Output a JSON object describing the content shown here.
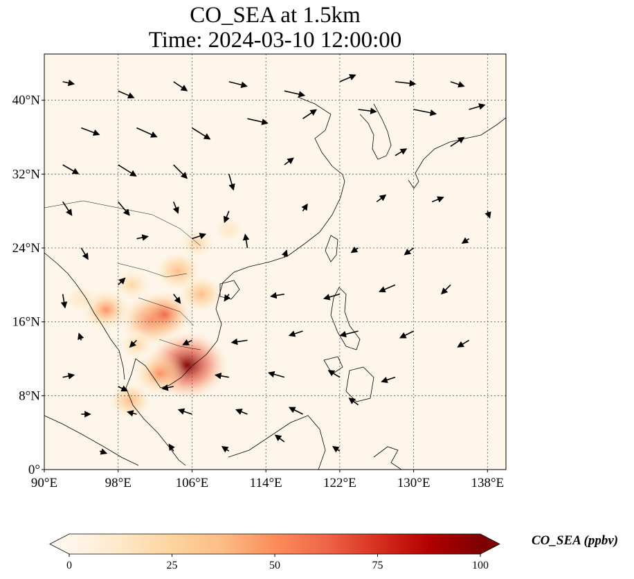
{
  "title": {
    "line1": "CO_SEA at 1.5km",
    "line2": "Time: 2024-03-10 12:00:00"
  },
  "map": {
    "lon_range": [
      90,
      140
    ],
    "lat_range": [
      0,
      45
    ],
    "lon_ticks": [
      {
        "value": 90,
        "label": "90°E"
      },
      {
        "value": 98,
        "label": "98°E"
      },
      {
        "value": 106,
        "label": "106°E"
      },
      {
        "value": 114,
        "label": "114°E"
      },
      {
        "value": 122,
        "label": "122°E"
      },
      {
        "value": 130,
        "label": "130°E"
      },
      {
        "value": 138,
        "label": "138°E"
      }
    ],
    "lat_ticks": [
      {
        "value": 0,
        "label": "0°"
      },
      {
        "value": 8,
        "label": "8°N"
      },
      {
        "value": 16,
        "label": "16°N"
      },
      {
        "value": 24,
        "label": "24°N"
      },
      {
        "value": 32,
        "label": "32°N"
      },
      {
        "value": 40,
        "label": "40°N"
      }
    ],
    "gridlines": true,
    "background_color": "#fef6ea",
    "coastline_color": "#000000",
    "hotspots": [
      {
        "lon": 105.5,
        "lat": 11.3,
        "value": 100
      },
      {
        "lon": 101.6,
        "lat": 16.2,
        "value": 68
      },
      {
        "lon": 103.0,
        "lat": 16.8,
        "value": 58
      },
      {
        "lon": 102.5,
        "lat": 10.4,
        "value": 52
      },
      {
        "lon": 96.7,
        "lat": 17.3,
        "value": 45
      },
      {
        "lon": 104.5,
        "lat": 21.5,
        "value": 38
      },
      {
        "lon": 106.5,
        "lat": 24.5,
        "value": 28
      },
      {
        "lon": 107.0,
        "lat": 19.0,
        "value": 34
      },
      {
        "lon": 99.5,
        "lat": 20.0,
        "value": 30
      },
      {
        "lon": 99.3,
        "lat": 7.5,
        "value": 32
      },
      {
        "lon": 94.0,
        "lat": 18.5,
        "value": 18
      },
      {
        "lon": 100.0,
        "lat": 13.5,
        "value": 25
      },
      {
        "lon": 110.0,
        "lat": 26.0,
        "value": 12
      }
    ],
    "wind_vectors": [
      {
        "lon": 92,
        "lat": 42,
        "u": 5,
        "v": -1
      },
      {
        "lon": 98,
        "lat": 41,
        "u": 7,
        "v": -3
      },
      {
        "lon": 104,
        "lat": 42,
        "u": 6,
        "v": -4
      },
      {
        "lon": 110,
        "lat": 42,
        "u": 8,
        "v": -2
      },
      {
        "lon": 116,
        "lat": 41,
        "u": 9,
        "v": -2
      },
      {
        "lon": 122,
        "lat": 42,
        "u": 7,
        "v": 3
      },
      {
        "lon": 128,
        "lat": 42,
        "u": 9,
        "v": -1
      },
      {
        "lon": 134,
        "lat": 42,
        "u": 6,
        "v": -2
      },
      {
        "lon": 94,
        "lat": 37,
        "u": 8,
        "v": -3
      },
      {
        "lon": 100,
        "lat": 37,
        "u": 9,
        "v": -4
      },
      {
        "lon": 106,
        "lat": 37,
        "u": 8,
        "v": -5
      },
      {
        "lon": 112,
        "lat": 38,
        "u": 9,
        "v": -2
      },
      {
        "lon": 118,
        "lat": 38,
        "u": 6,
        "v": 4
      },
      {
        "lon": 124,
        "lat": 39,
        "u": 8,
        "v": -1
      },
      {
        "lon": 130,
        "lat": 39,
        "u": 10,
        "v": -2
      },
      {
        "lon": 136,
        "lat": 39,
        "u": 7,
        "v": 2
      },
      {
        "lon": 92,
        "lat": 33,
        "u": 7,
        "v": -4
      },
      {
        "lon": 98,
        "lat": 33,
        "u": 8,
        "v": -5
      },
      {
        "lon": 104,
        "lat": 33,
        "u": 6,
        "v": -6
      },
      {
        "lon": 110,
        "lat": 32,
        "u": 2,
        "v": -7
      },
      {
        "lon": 116,
        "lat": 33,
        "u": 4,
        "v": 3
      },
      {
        "lon": 128,
        "lat": 34,
        "u": 5,
        "v": 3
      },
      {
        "lon": 134,
        "lat": 35,
        "u": 6,
        "v": 4
      },
      {
        "lon": 92,
        "lat": 29,
        "u": 4,
        "v": -6
      },
      {
        "lon": 98,
        "lat": 29,
        "u": 5,
        "v": -6
      },
      {
        "lon": 104,
        "lat": 29,
        "u": 2,
        "v": -5
      },
      {
        "lon": 110,
        "lat": 28,
        "u": -2,
        "v": -5
      },
      {
        "lon": 118,
        "lat": 28,
        "u": 2,
        "v": 3
      },
      {
        "lon": 126,
        "lat": 29,
        "u": 4,
        "v": 3
      },
      {
        "lon": 132,
        "lat": 29,
        "u": 5,
        "v": 2
      },
      {
        "lon": 138,
        "lat": 28,
        "u": 1,
        "v": -3
      },
      {
        "lon": 94,
        "lat": 24,
        "u": 3,
        "v": -5
      },
      {
        "lon": 100,
        "lat": 25,
        "u": 5,
        "v": 1
      },
      {
        "lon": 106,
        "lat": 25,
        "u": 6,
        "v": 2
      },
      {
        "lon": 112,
        "lat": 24,
        "u": -1,
        "v": 6
      },
      {
        "lon": 116,
        "lat": 23,
        "u": 1,
        "v": 3
      },
      {
        "lon": 124,
        "lat": 24,
        "u": -3,
        "v": -2
      },
      {
        "lon": 130,
        "lat": 24,
        "u": -4,
        "v": -3
      },
      {
        "lon": 136,
        "lat": 25,
        "u": -3,
        "v": -2
      },
      {
        "lon": 92,
        "lat": 19,
        "u": 1,
        "v": -6
      },
      {
        "lon": 98,
        "lat": 20,
        "u": 3,
        "v": 3
      },
      {
        "lon": 104,
        "lat": 19,
        "u": 3,
        "v": -4
      },
      {
        "lon": 110,
        "lat": 19,
        "u": -2,
        "v": -3
      },
      {
        "lon": 116,
        "lat": 19,
        "u": -6,
        "v": -1
      },
      {
        "lon": 122,
        "lat": 19,
        "u": -7,
        "v": -2
      },
      {
        "lon": 128,
        "lat": 20,
        "u": -7,
        "v": -3
      },
      {
        "lon": 134,
        "lat": 20,
        "u": -4,
        "v": -4
      },
      {
        "lon": 94,
        "lat": 14,
        "u": -1,
        "v": 3
      },
      {
        "lon": 100,
        "lat": 14,
        "u": -3,
        "v": -3
      },
      {
        "lon": 106,
        "lat": 14,
        "u": -4,
        "v": -2
      },
      {
        "lon": 112,
        "lat": 14,
        "u": -7,
        "v": -1
      },
      {
        "lon": 118,
        "lat": 15,
        "u": -6,
        "v": -2
      },
      {
        "lon": 124,
        "lat": 15,
        "u": -8,
        "v": -2
      },
      {
        "lon": 130,
        "lat": 15,
        "u": -6,
        "v": -3
      },
      {
        "lon": 136,
        "lat": 14,
        "u": -5,
        "v": -3
      },
      {
        "lon": 92,
        "lat": 10,
        "u": 5,
        "v": 1
      },
      {
        "lon": 98,
        "lat": 9,
        "u": 4,
        "v": -2
      },
      {
        "lon": 104,
        "lat": 9,
        "u": -5,
        "v": -1
      },
      {
        "lon": 110,
        "lat": 10,
        "u": -6,
        "v": 1
      },
      {
        "lon": 116,
        "lat": 10,
        "u": -7,
        "v": 2
      },
      {
        "lon": 122,
        "lat": 10,
        "u": -5,
        "v": 3
      },
      {
        "lon": 128,
        "lat": 10,
        "u": -6,
        "v": -2
      },
      {
        "lon": 94,
        "lat": 6,
        "u": 4,
        "v": 0
      },
      {
        "lon": 100,
        "lat": 6,
        "u": -4,
        "v": 1
      },
      {
        "lon": 106,
        "lat": 6,
        "u": -6,
        "v": 2
      },
      {
        "lon": 112,
        "lat": 6,
        "u": -5,
        "v": 2
      },
      {
        "lon": 118,
        "lat": 6,
        "u": -6,
        "v": 3
      },
      {
        "lon": 124,
        "lat": 7,
        "u": -4,
        "v": 3
      },
      {
        "lon": 96,
        "lat": 2,
        "u": 3,
        "v": -1
      },
      {
        "lon": 104,
        "lat": 2,
        "u": -2,
        "v": 3
      },
      {
        "lon": 110,
        "lat": 2,
        "u": -3,
        "v": 2
      },
      {
        "lon": 116,
        "lat": 3,
        "u": -4,
        "v": 3
      },
      {
        "lon": 122,
        "lat": 2,
        "u": -3,
        "v": 2
      }
    ]
  },
  "colorbar": {
    "label": "CO_SEA (ppbv)",
    "min": 0,
    "max": 100,
    "extend": "both",
    "colormap": "OrRd",
    "colors": [
      "#fff7ec",
      "#fee8c8",
      "#fdd49e",
      "#fdbb84",
      "#fc8d59",
      "#ef6548",
      "#d7301f",
      "#b30000",
      "#7f0000"
    ],
    "ticks": [
      {
        "value": 0,
        "label": "0"
      },
      {
        "value": 25,
        "label": "25"
      },
      {
        "value": 50,
        "label": "50"
      },
      {
        "value": 75,
        "label": "75"
      },
      {
        "value": 100,
        "label": "100"
      }
    ]
  }
}
